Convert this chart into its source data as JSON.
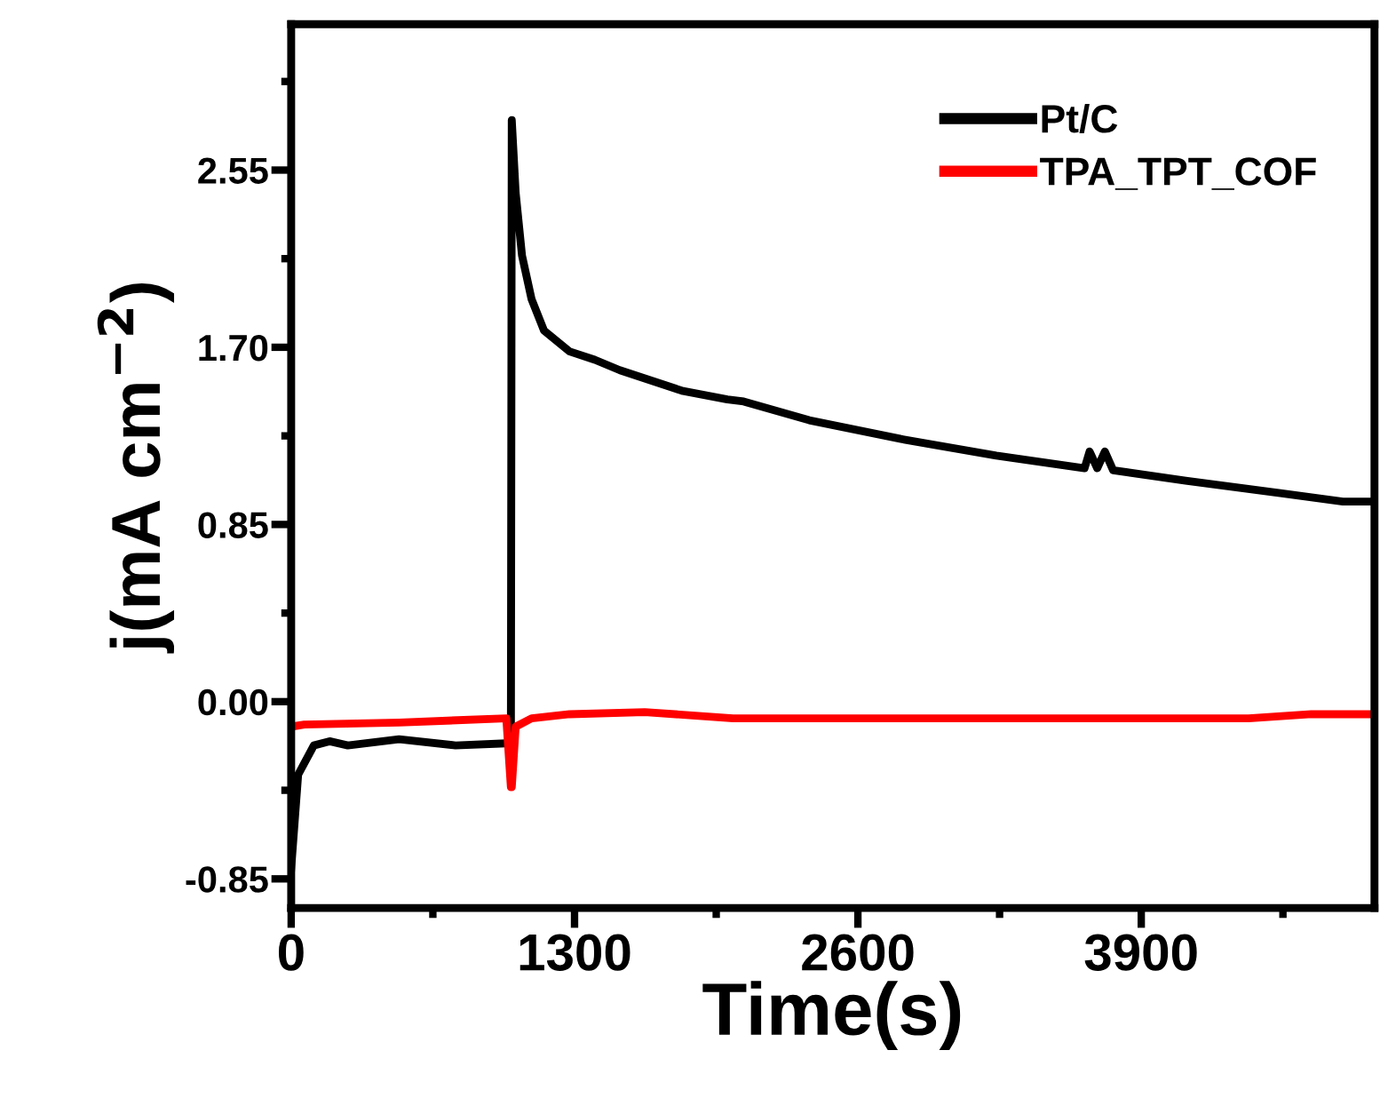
{
  "chart_data": {
    "type": "line",
    "xlabel": "Time(s)",
    "ylabel": "j(mA cm$^{−2}$)",
    "xlim": [
      0,
      4970
    ],
    "xticks": [
      0,
      1300,
      2600,
      3900
    ],
    "ylim": [
      -0.99,
      3.25
    ],
    "yticks": [
      -0.85,
      {
        "value": 0,
        "label": "0.00"
      },
      0.85,
      {
        "value": 1.7,
        "label": "1.70"
      },
      2.55
    ],
    "legend": "top right",
    "grid": false,
    "marker": "none",
    "line_style": "solid",
    "series": [
      {
        "name": "Pt/C",
        "color": "#000000",
        "x": [
          0,
          32,
          104,
          176,
          260,
          495,
          754,
          987,
          1008,
          1012,
          1030,
          1059,
          1103,
          1160,
          1277,
          1393,
          1508,
          1798,
          2001,
          2076,
          2377,
          2798,
          3235,
          3640,
          3663,
          3698,
          3733,
          3771,
          4104,
          4538,
          4825,
          4970
        ],
        "values": [
          -0.8,
          -0.35,
          -0.21,
          -0.19,
          -0.21,
          -0.18,
          -0.21,
          -0.2,
          -0.2,
          2.79,
          2.44,
          2.14,
          1.93,
          1.78,
          1.68,
          1.64,
          1.59,
          1.49,
          1.45,
          1.44,
          1.35,
          1.26,
          1.18,
          1.12,
          1.2,
          1.12,
          1.2,
          1.11,
          1.06,
          1.0,
          0.96,
          0.96
        ]
      },
      {
        "name": "TPA_TPT_COF",
        "color": "#ff0000",
        "x": [
          0,
          60,
          495,
          987,
          1008,
          1012,
          1030,
          1103,
          1277,
          1622,
          2027,
          2377,
          2652,
          3958,
          4393,
          4680,
          4970
        ],
        "values": [
          -0.12,
          -0.11,
          -0.1,
          -0.08,
          -0.41,
          -0.41,
          -0.12,
          -0.08,
          -0.06,
          -0.05,
          -0.08,
          -0.08,
          -0.08,
          -0.08,
          -0.08,
          -0.06,
          -0.06
        ]
      }
    ]
  }
}
